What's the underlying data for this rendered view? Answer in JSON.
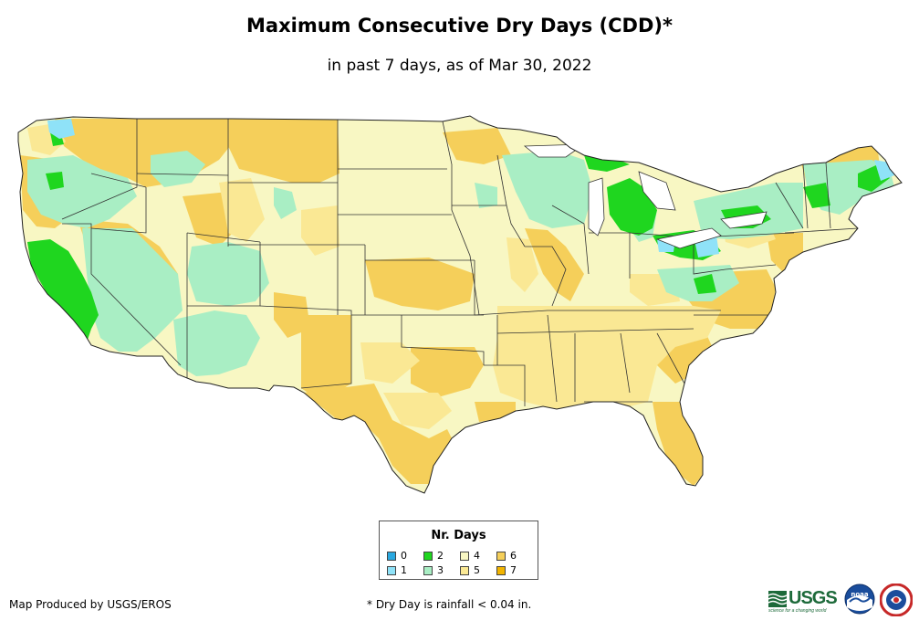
{
  "title": "Maximum Consecutive Dry Days (CDD)*",
  "subtitle": "in past 7 days, as of Mar 30, 2022",
  "legend": {
    "title": "Nr. Days",
    "items": [
      {
        "label": "0",
        "color": "#2aa8e0"
      },
      {
        "label": "2",
        "color": "#1fd61f"
      },
      {
        "label": "4",
        "color": "#f8f7c3"
      },
      {
        "label": "6",
        "color": "#f5cf5a"
      },
      {
        "label": "1",
        "color": "#8fe2f8"
      },
      {
        "label": "3",
        "color": "#a9eec4"
      },
      {
        "label": "5",
        "color": "#fae894"
      },
      {
        "label": "7",
        "color": "#f2b400"
      }
    ]
  },
  "credit": "Map Produced by USGS/EROS",
  "footnote": "* Dry Day is rainfall < 0.04 in.",
  "logos": {
    "usgs_text": "USGS",
    "usgs_tagline": "science for a changing world",
    "noaa_text": "noaa"
  }
}
